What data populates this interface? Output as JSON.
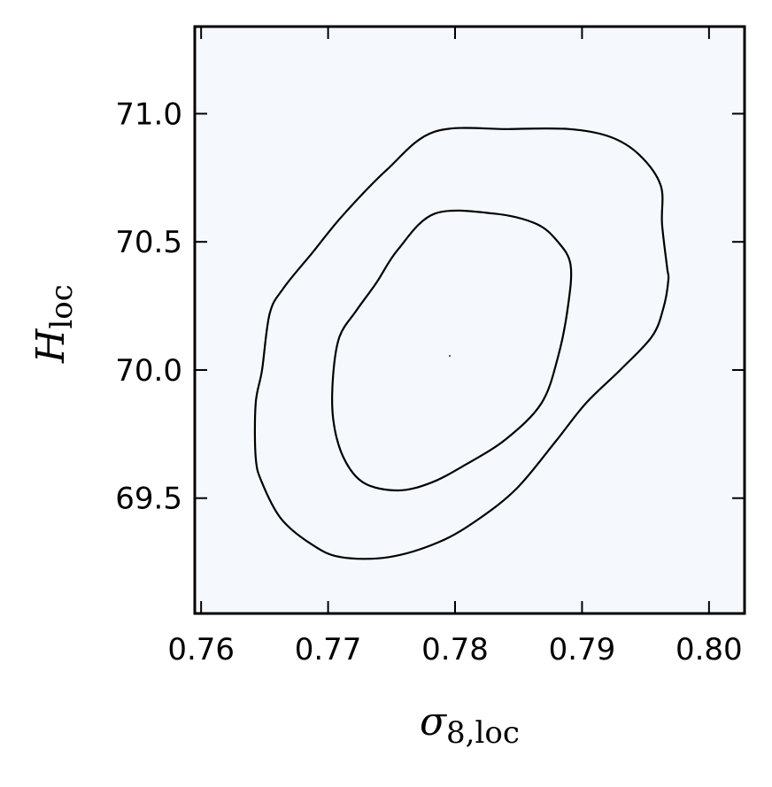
{
  "chart_data": {
    "type": "contour",
    "xlabel": {
      "symbol": "σ",
      "subscript": "8,loc"
    },
    "ylabel": {
      "symbol": "H",
      "subscript": "loc"
    },
    "xlim": [
      0.7595,
      0.8028
    ],
    "ylim": [
      69.05,
      71.34
    ],
    "x_ticks": [
      "0.76",
      "0.77",
      "0.78",
      "0.79",
      "0.80"
    ],
    "y_ticks": [
      "69.5",
      "70.0",
      "70.5",
      "71.0"
    ],
    "peak": {
      "x": 0.7805,
      "y": 70.06
    },
    "colormap": [
      "#f7fbff",
      "#c6dbef",
      "#6baed6",
      "#2171b5",
      "#08306b"
    ],
    "contours": [
      {
        "level": "outer",
        "points": [
          [
            0.7784,
            70.93
          ],
          [
            0.7843,
            70.94
          ],
          [
            0.789,
            70.94
          ],
          [
            0.7922,
            70.91
          ],
          [
            0.7945,
            70.84
          ],
          [
            0.7962,
            70.72
          ],
          [
            0.7963,
            70.57
          ],
          [
            0.7967,
            70.4
          ],
          [
            0.7968,
            70.35
          ],
          [
            0.7964,
            70.24
          ],
          [
            0.7955,
            70.13
          ],
          [
            0.793,
            70.0
          ],
          [
            0.7903,
            69.87
          ],
          [
            0.7879,
            69.72
          ],
          [
            0.7849,
            69.54
          ],
          [
            0.7819,
            69.42
          ],
          [
            0.7788,
            69.33
          ],
          [
            0.7748,
            69.27
          ],
          [
            0.771,
            69.27
          ],
          [
            0.7687,
            69.32
          ],
          [
            0.7663,
            69.42
          ],
          [
            0.7648,
            69.56
          ],
          [
            0.7643,
            69.66
          ],
          [
            0.7643,
            69.87
          ],
          [
            0.7648,
            70.0
          ],
          [
            0.7654,
            70.22
          ],
          [
            0.7665,
            70.32
          ],
          [
            0.7688,
            70.46
          ],
          [
            0.7711,
            70.6
          ],
          [
            0.7746,
            70.78
          ],
          [
            0.7784,
            70.93
          ]
        ]
      },
      {
        "level": "inner",
        "points": [
          [
            0.7784,
            70.61
          ],
          [
            0.7831,
            70.61
          ],
          [
            0.7864,
            70.57
          ],
          [
            0.7881,
            70.5
          ],
          [
            0.7891,
            70.41
          ],
          [
            0.7889,
            70.25
          ],
          [
            0.7881,
            70.05
          ],
          [
            0.7868,
            69.87
          ],
          [
            0.784,
            69.73
          ],
          [
            0.7808,
            69.63
          ],
          [
            0.7781,
            69.56
          ],
          [
            0.7755,
            69.53
          ],
          [
            0.7728,
            69.56
          ],
          [
            0.7712,
            69.66
          ],
          [
            0.7704,
            69.81
          ],
          [
            0.7704,
            69.98
          ],
          [
            0.7709,
            70.13
          ],
          [
            0.7722,
            70.23
          ],
          [
            0.7738,
            70.34
          ],
          [
            0.7755,
            70.47
          ],
          [
            0.7784,
            70.61
          ]
        ]
      }
    ]
  }
}
